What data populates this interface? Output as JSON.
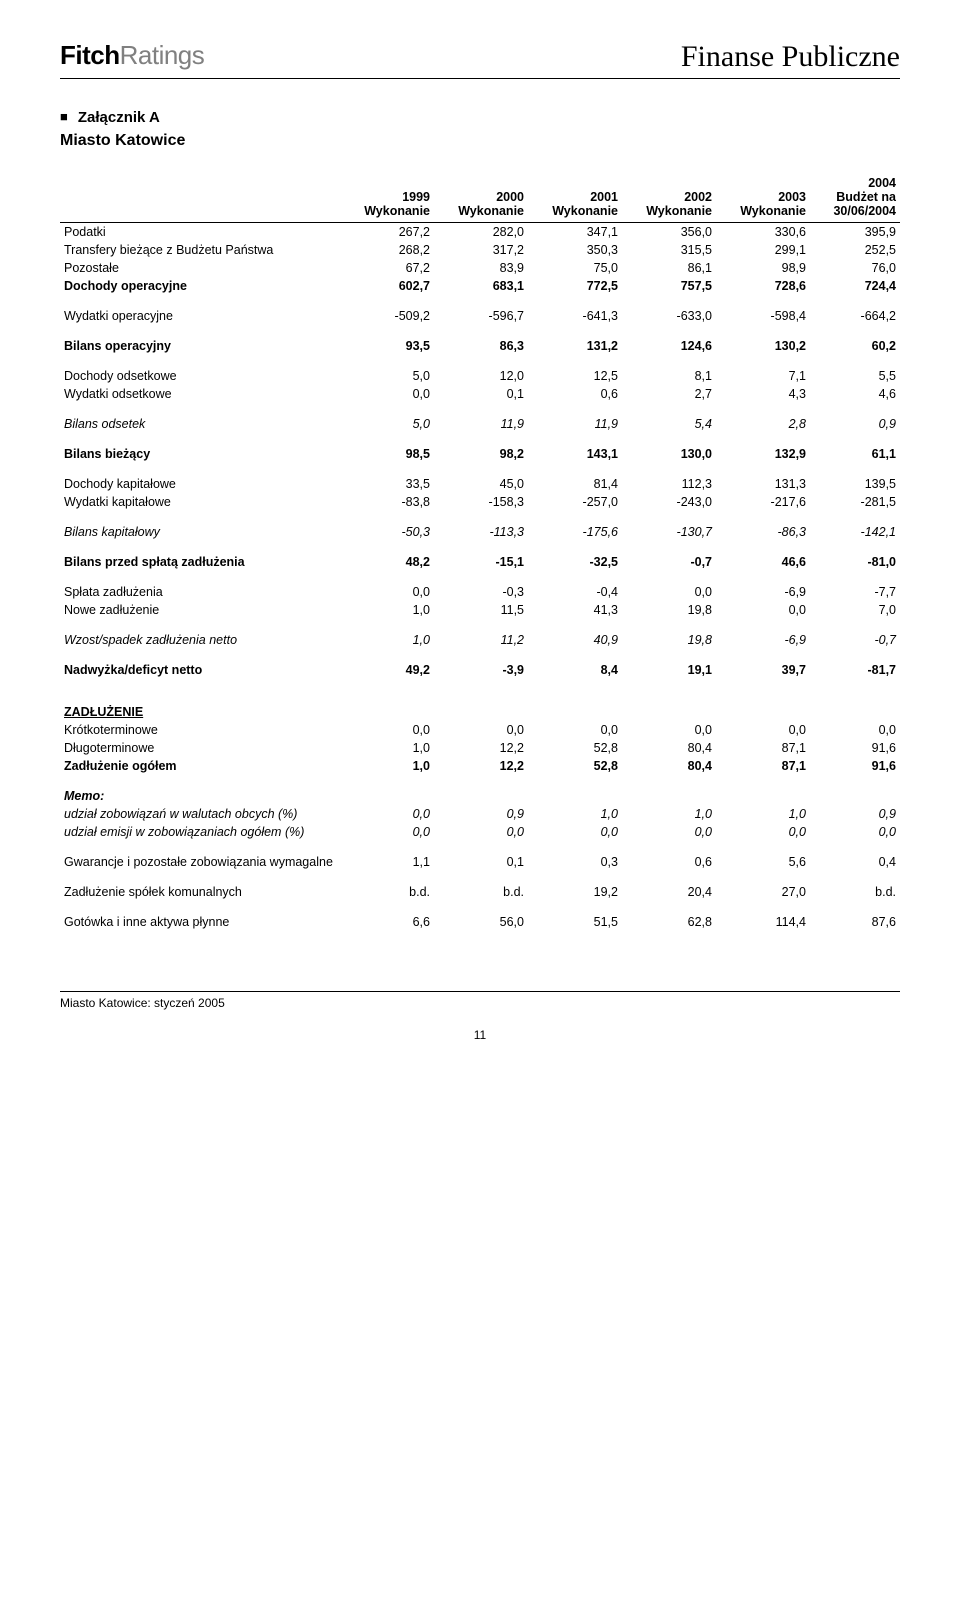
{
  "header": {
    "logo_fitch": "Fitch",
    "logo_ratings": "Ratings",
    "doc_title": "Finanse Publiczne"
  },
  "section": {
    "appendix_label": "Załącznik A",
    "subtitle": "Miasto Katowice"
  },
  "table": {
    "columns": [
      "",
      "1999\nWykonanie",
      "2000\nWykonanie",
      "2001\nWykonanie",
      "2002\nWykonanie",
      "2003\nWykonanie",
      "2004\nBudżet na\n30/06/2004"
    ],
    "rows": [
      {
        "style": "",
        "cells": [
          "Podatki",
          "267,2",
          "282,0",
          "347,1",
          "356,0",
          "330,6",
          "395,9"
        ]
      },
      {
        "style": "",
        "cells": [
          "Transfery bieżące z Budżetu Państwa",
          "268,2",
          "317,2",
          "350,3",
          "315,5",
          "299,1",
          "252,5"
        ]
      },
      {
        "style": "",
        "cells": [
          "Pozostałe",
          "67,2",
          "83,9",
          "75,0",
          "86,1",
          "98,9",
          "76,0"
        ]
      },
      {
        "style": "bold",
        "cells": [
          "Dochody operacyjne",
          "602,7",
          "683,1",
          "772,5",
          "757,5",
          "728,6",
          "724,4"
        ]
      },
      {
        "style": "spacer",
        "cells": []
      },
      {
        "style": "",
        "cells": [
          "Wydatki operacyjne",
          "-509,2",
          "-596,7",
          "-641,3",
          "-633,0",
          "-598,4",
          "-664,2"
        ]
      },
      {
        "style": "spacer",
        "cells": []
      },
      {
        "style": "bold",
        "cells": [
          "Bilans operacyjny",
          "93,5",
          "86,3",
          "131,2",
          "124,6",
          "130,2",
          "60,2"
        ]
      },
      {
        "style": "spacer",
        "cells": []
      },
      {
        "style": "",
        "cells": [
          "Dochody odsetkowe",
          "5,0",
          "12,0",
          "12,5",
          "8,1",
          "7,1",
          "5,5"
        ]
      },
      {
        "style": "",
        "cells": [
          "Wydatki odsetkowe",
          "0,0",
          "0,1",
          "0,6",
          "2,7",
          "4,3",
          "4,6"
        ]
      },
      {
        "style": "spacer",
        "cells": []
      },
      {
        "style": "italic-all",
        "cells": [
          "Bilans odsetek",
          "5,0",
          "11,9",
          "11,9",
          "5,4",
          "2,8",
          "0,9"
        ]
      },
      {
        "style": "spacer",
        "cells": []
      },
      {
        "style": "bold",
        "cells": [
          "Bilans bieżący",
          "98,5",
          "98,2",
          "143,1",
          "130,0",
          "132,9",
          "61,1"
        ]
      },
      {
        "style": "spacer",
        "cells": []
      },
      {
        "style": "",
        "cells": [
          "Dochody kapitałowe",
          "33,5",
          "45,0",
          "81,4",
          "112,3",
          "131,3",
          "139,5"
        ]
      },
      {
        "style": "",
        "cells": [
          "Wydatki kapitałowe",
          "-83,8",
          "-158,3",
          "-257,0",
          "-243,0",
          "-217,6",
          "-281,5"
        ]
      },
      {
        "style": "spacer",
        "cells": []
      },
      {
        "style": "italic-all",
        "cells": [
          "Bilans kapitałowy",
          "-50,3",
          "-113,3",
          "-175,6",
          "-130,7",
          "-86,3",
          "-142,1"
        ]
      },
      {
        "style": "spacer",
        "cells": []
      },
      {
        "style": "bold",
        "cells": [
          "Bilans przed spłatą zadłużenia",
          "48,2",
          "-15,1",
          "-32,5",
          "-0,7",
          "46,6",
          "-81,0"
        ]
      },
      {
        "style": "spacer",
        "cells": []
      },
      {
        "style": "",
        "cells": [
          "Spłata zadłużenia",
          "0,0",
          "-0,3",
          "-0,4",
          "0,0",
          "-6,9",
          "-7,7"
        ]
      },
      {
        "style": "",
        "cells": [
          "Nowe zadłużenie",
          "1,0",
          "11,5",
          "41,3",
          "19,8",
          "0,0",
          "7,0"
        ]
      },
      {
        "style": "spacer",
        "cells": []
      },
      {
        "style": "italic-all",
        "cells": [
          "Wzost/spadek zadłużenia netto",
          "1,0",
          "11,2",
          "40,9",
          "19,8",
          "-6,9",
          "-0,7"
        ]
      },
      {
        "style": "spacer",
        "cells": []
      },
      {
        "style": "bold",
        "cells": [
          "Nadwyżka/deficyt netto",
          "49,2",
          "-3,9",
          "8,4",
          "19,1",
          "39,7",
          "-81,7"
        ]
      },
      {
        "style": "spacer-lg",
        "cells": []
      },
      {
        "style": "underline",
        "cells": [
          "ZADŁUŻENIE",
          "",
          "",
          "",
          "",
          "",
          ""
        ]
      },
      {
        "style": "",
        "cells": [
          "Krótkoterminowe",
          "0,0",
          "0,0",
          "0,0",
          "0,0",
          "0,0",
          "0,0"
        ]
      },
      {
        "style": "",
        "cells": [
          "Długoterminowe",
          "1,0",
          "12,2",
          "52,8",
          "80,4",
          "87,1",
          "91,6"
        ]
      },
      {
        "style": "bold",
        "cells": [
          "Zadłużenie ogółem",
          "1,0",
          "12,2",
          "52,8",
          "80,4",
          "87,1",
          "91,6"
        ]
      },
      {
        "style": "spacer",
        "cells": []
      },
      {
        "style": "bold italic",
        "cells": [
          "Memo:",
          "",
          "",
          "",
          "",
          "",
          ""
        ]
      },
      {
        "style": "italic-all",
        "cells": [
          "udział zobowiązań w walutach obcych (%)",
          "0,0",
          "0,9",
          "1,0",
          "1,0",
          "1,0",
          "0,9"
        ]
      },
      {
        "style": "italic-all",
        "cells": [
          "udział emisji w zobowiązaniach ogółem (%)",
          "0,0",
          "0,0",
          "0,0",
          "0,0",
          "0,0",
          "0,0"
        ]
      },
      {
        "style": "spacer",
        "cells": []
      },
      {
        "style": "",
        "cells": [
          "Gwarancje i pozostałe zobowiązania wymagalne",
          "1,1",
          "0,1",
          "0,3",
          "0,6",
          "5,6",
          "0,4"
        ]
      },
      {
        "style": "spacer",
        "cells": []
      },
      {
        "style": "",
        "cells": [
          "Zadłużenie spółek komunalnych",
          "b.d.",
          "b.d.",
          "19,2",
          "20,4",
          "27,0",
          "b.d."
        ]
      },
      {
        "style": "spacer",
        "cells": []
      },
      {
        "style": "",
        "cells": [
          "Gotówka i inne aktywa płynne",
          "6,6",
          "56,0",
          "51,5",
          "62,8",
          "114,4",
          "87,6"
        ]
      }
    ]
  },
  "footer": {
    "text": "Miasto Katowice: styczeń 2005",
    "page": "11"
  }
}
